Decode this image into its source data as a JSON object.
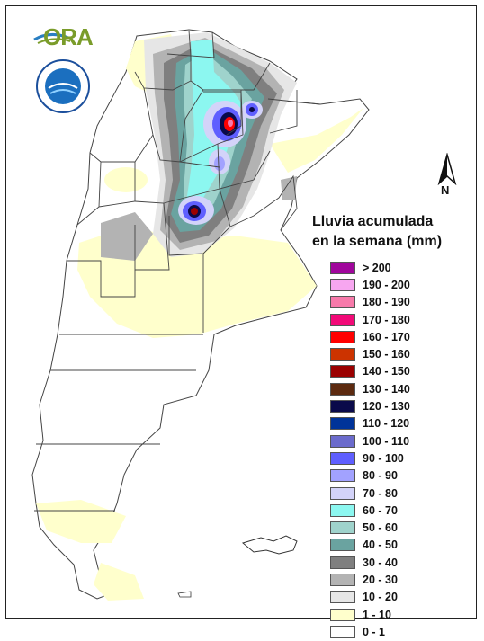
{
  "logo": {
    "text": "ORA",
    "seal_name": "gov-seal"
  },
  "north_arrow": {
    "label": "N"
  },
  "legend": {
    "title_line1": "Lluvia acumulada",
    "title_line2": "en la semana (mm)",
    "classes": [
      {
        "label": "> 200",
        "color": "#a0069c"
      },
      {
        "label": "190 - 200",
        "color": "#f7a6f0"
      },
      {
        "label": "180 - 190",
        "color": "#f77aaa"
      },
      {
        "label": "170 - 180",
        "color": "#f20a78"
      },
      {
        "label": "160 - 170",
        "color": "#ff0000"
      },
      {
        "label": "150 - 160",
        "color": "#cc3300"
      },
      {
        "label": "140 - 150",
        "color": "#9b0000"
      },
      {
        "label": "130 - 140",
        "color": "#5c2a10"
      },
      {
        "label": "120 - 130",
        "color": "#0a0a4a"
      },
      {
        "label": "110 - 120",
        "color": "#003399"
      },
      {
        "label": "100 - 110",
        "color": "#6b6bcc"
      },
      {
        "label": "90 - 100",
        "color": "#5f5fff"
      },
      {
        "label": "80 - 90",
        "color": "#a2a2ff"
      },
      {
        "label": "70 - 80",
        "color": "#d3d3f9"
      },
      {
        "label": "60 - 70",
        "color": "#8cf7f0"
      },
      {
        "label": "50 - 60",
        "color": "#9fd3cc"
      },
      {
        "label": "40 - 50",
        "color": "#6aa3a0"
      },
      {
        "label": "30 - 40",
        "color": "#7f7f7f"
      },
      {
        "label": "20 - 30",
        "color": "#b3b3b3"
      },
      {
        "label": "10 - 20",
        "color": "#e6e6e6"
      },
      {
        "label": "1 - 10",
        "color": "#ffffcc"
      },
      {
        "label": "0 - 1",
        "color": "#ffffff"
      }
    ]
  }
}
